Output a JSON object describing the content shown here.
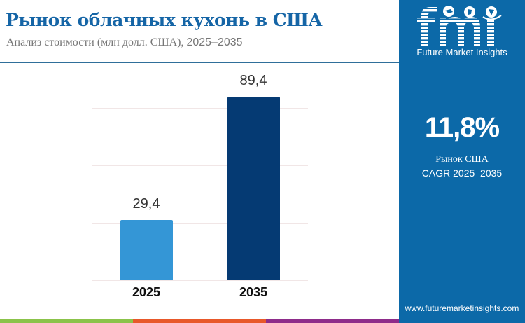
{
  "header": {
    "title": "Рынок облачных кухонь в США",
    "subtitle_text": "Анализ стоимости (млн долл. США), ",
    "subtitle_years": "2025–2035"
  },
  "sidebar": {
    "logo_text": "Future Market Insights",
    "cagr_value": "11,8%",
    "cagr_label_1": "Рынок США",
    "cagr_label_2": "CAGR 2025–2035",
    "website": "www.futuremarketinsights.com",
    "background_color": "#0c69a8"
  },
  "footer_stripe": {
    "colors": [
      "#8bc34a",
      "#e8582a",
      "#8e2c8a"
    ]
  },
  "chart_data": {
    "type": "bar",
    "title": "Рынок облачных кухонь в США",
    "subtitle": "Анализ стоимости (млн долл. США), 2025–2035",
    "categories": [
      "2025",
      "2035"
    ],
    "values": [
      29.4,
      89.4
    ],
    "value_labels": [
      "29,4",
      "89,4"
    ],
    "bar_colors": [
      "#3496d6",
      "#053a73"
    ],
    "xlabel": "",
    "ylabel": "",
    "ylim": [
      0,
      90
    ],
    "grid": true,
    "legend": "none"
  }
}
